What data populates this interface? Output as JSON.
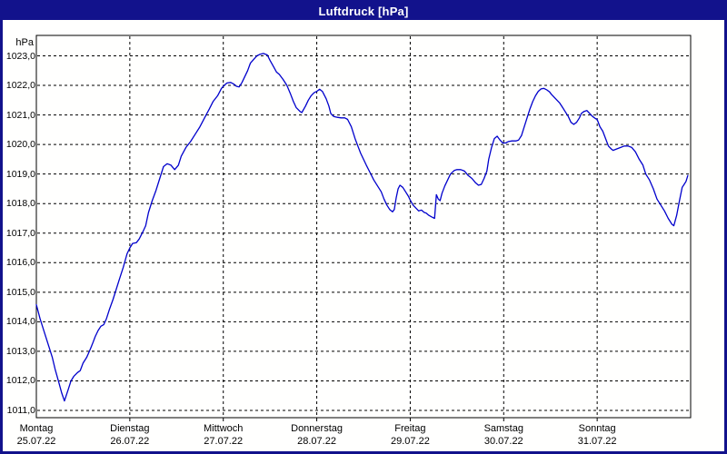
{
  "window": {
    "title": "Luftdruck [hPa]"
  },
  "colors": {
    "frame": "#12128c",
    "title_text": "#ffffff",
    "plot_line": "#0000cc",
    "grid_line": "#000000",
    "axis_text": "#000000",
    "plot_background": "#fffffe"
  },
  "chart_data": {
    "type": "line",
    "title": "Luftdruck [hPa]",
    "unit_label": "hPa",
    "legend": "none",
    "y_axis": {
      "tick_labels": [
        "1023,0",
        "1022,0",
        "1021,0",
        "1020,0",
        "1019,0",
        "1018,0",
        "1017,0",
        "1016,0",
        "1015,0",
        "1014,0",
        "1013,0",
        "1012,0",
        "1011,0"
      ],
      "tick_values": [
        1023,
        1022,
        1021,
        1020,
        1019,
        1018,
        1017,
        1016,
        1015,
        1014,
        1013,
        1012,
        1011
      ],
      "range": [
        1011,
        1023
      ],
      "grid": "dashed"
    },
    "x_axis": {
      "days": [
        {
          "name": "Montag",
          "date": "25.07.22"
        },
        {
          "name": "Dienstag",
          "date": "26.07.22"
        },
        {
          "name": "Mittwoch",
          "date": "27.07.22"
        },
        {
          "name": "Donnerstag",
          "date": "28.07.22"
        },
        {
          "name": "Freitag",
          "date": "29.07.22"
        },
        {
          "name": "Samstag",
          "date": "30.07.22"
        },
        {
          "name": "Sonntag",
          "date": "31.07.22"
        }
      ],
      "range_days": [
        0,
        7
      ],
      "grid": "dashed"
    },
    "series": [
      {
        "name": "Luftdruck",
        "color": "#0000cc",
        "points_day_hpa": [
          [
            0,
            1014.58
          ],
          [
            0.04,
            1014.1
          ],
          [
            0.08,
            1013.7
          ],
          [
            0.13,
            1013.2
          ],
          [
            0.17,
            1012.8
          ],
          [
            0.2,
            1012.4
          ],
          [
            0.24,
            1011.95
          ],
          [
            0.27,
            1011.6
          ],
          [
            0.3,
            1011.32
          ],
          [
            0.34,
            1011.7
          ],
          [
            0.37,
            1012.0
          ],
          [
            0.4,
            1012.15
          ],
          [
            0.44,
            1012.28
          ],
          [
            0.47,
            1012.35
          ],
          [
            0.5,
            1012.6
          ],
          [
            0.54,
            1012.8
          ],
          [
            0.58,
            1013.1
          ],
          [
            0.6,
            1013.25
          ],
          [
            0.63,
            1013.5
          ],
          [
            0.66,
            1013.7
          ],
          [
            0.69,
            1013.85
          ],
          [
            0.72,
            1013.9
          ],
          [
            0.75,
            1014.1
          ],
          [
            0.78,
            1014.4
          ],
          [
            0.82,
            1014.75
          ],
          [
            0.85,
            1015.05
          ],
          [
            0.89,
            1015.45
          ],
          [
            0.93,
            1015.85
          ],
          [
            0.97,
            1016.3
          ],
          [
            1,
            1016.5
          ],
          [
            1.03,
            1016.65
          ],
          [
            1.07,
            1016.68
          ],
          [
            1.1,
            1016.8
          ],
          [
            1.14,
            1017.05
          ],
          [
            1.17,
            1017.25
          ],
          [
            1.2,
            1017.7
          ],
          [
            1.24,
            1018.1
          ],
          [
            1.28,
            1018.45
          ],
          [
            1.32,
            1018.85
          ],
          [
            1.36,
            1019.25
          ],
          [
            1.4,
            1019.35
          ],
          [
            1.44,
            1019.3
          ],
          [
            1.48,
            1019.15
          ],
          [
            1.52,
            1019.3
          ],
          [
            1.55,
            1019.6
          ],
          [
            1.6,
            1019.9
          ],
          [
            1.65,
            1020.1
          ],
          [
            1.7,
            1020.35
          ],
          [
            1.75,
            1020.6
          ],
          [
            1.8,
            1020.9
          ],
          [
            1.85,
            1021.2
          ],
          [
            1.89,
            1021.45
          ],
          [
            1.94,
            1021.65
          ],
          [
            1.98,
            1021.9
          ],
          [
            2.01,
            1022.0
          ],
          [
            2.04,
            1022.08
          ],
          [
            2.08,
            1022.1
          ],
          [
            2.11,
            1022.05
          ],
          [
            2.14,
            1021.97
          ],
          [
            2.17,
            1021.95
          ],
          [
            2.2,
            1022.1
          ],
          [
            2.23,
            1022.3
          ],
          [
            2.26,
            1022.5
          ],
          [
            2.29,
            1022.75
          ],
          [
            2.33,
            1022.9
          ],
          [
            2.36,
            1023.0
          ],
          [
            2.39,
            1023.05
          ],
          [
            2.43,
            1023.08
          ],
          [
            2.47,
            1023.03
          ],
          [
            2.5,
            1022.85
          ],
          [
            2.54,
            1022.62
          ],
          [
            2.57,
            1022.45
          ],
          [
            2.6,
            1022.37
          ],
          [
            2.64,
            1022.2
          ],
          [
            2.68,
            1022.0
          ],
          [
            2.72,
            1021.7
          ],
          [
            2.75,
            1021.45
          ],
          [
            2.78,
            1021.25
          ],
          [
            2.82,
            1021.12
          ],
          [
            2.84,
            1021.08
          ],
          [
            2.88,
            1021.3
          ],
          [
            2.91,
            1021.5
          ],
          [
            2.94,
            1021.65
          ],
          [
            2.97,
            1021.75
          ],
          [
            3,
            1021.8
          ],
          [
            3.03,
            1021.87
          ],
          [
            3.06,
            1021.8
          ],
          [
            3.1,
            1021.55
          ],
          [
            3.13,
            1021.3
          ],
          [
            3.15,
            1021.05
          ],
          [
            3.18,
            1020.95
          ],
          [
            3.22,
            1020.92
          ],
          [
            3.26,
            1020.9
          ],
          [
            3.3,
            1020.9
          ],
          [
            3.33,
            1020.85
          ],
          [
            3.37,
            1020.6
          ],
          [
            3.41,
            1020.2
          ],
          [
            3.44,
            1019.95
          ],
          [
            3.47,
            1019.7
          ],
          [
            3.5,
            1019.5
          ],
          [
            3.53,
            1019.3
          ],
          [
            3.57,
            1019.05
          ],
          [
            3.61,
            1018.8
          ],
          [
            3.65,
            1018.6
          ],
          [
            3.69,
            1018.4
          ],
          [
            3.72,
            1018.15
          ],
          [
            3.75,
            1017.95
          ],
          [
            3.78,
            1017.8
          ],
          [
            3.81,
            1017.72
          ],
          [
            3.83,
            1017.8
          ],
          [
            3.85,
            1018.2
          ],
          [
            3.87,
            1018.5
          ],
          [
            3.89,
            1018.62
          ],
          [
            3.92,
            1018.55
          ],
          [
            3.95,
            1018.4
          ],
          [
            3.98,
            1018.25
          ],
          [
            4,
            1018.12
          ],
          [
            4.03,
            1017.95
          ],
          [
            4.06,
            1017.85
          ],
          [
            4.09,
            1017.75
          ],
          [
            4.12,
            1017.78
          ],
          [
            4.15,
            1017.7
          ],
          [
            4.17,
            1017.68
          ],
          [
            4.2,
            1017.6
          ],
          [
            4.23,
            1017.55
          ],
          [
            4.26,
            1017.5
          ],
          [
            4.28,
            1018.3
          ],
          [
            4.3,
            1018.15
          ],
          [
            4.32,
            1018.1
          ],
          [
            4.34,
            1018.35
          ],
          [
            4.37,
            1018.6
          ],
          [
            4.4,
            1018.8
          ],
          [
            4.43,
            1019.0
          ],
          [
            4.47,
            1019.12
          ],
          [
            4.5,
            1019.15
          ],
          [
            4.54,
            1019.15
          ],
          [
            4.58,
            1019.1
          ],
          [
            4.62,
            1018.95
          ],
          [
            4.66,
            1018.85
          ],
          [
            4.7,
            1018.7
          ],
          [
            4.73,
            1018.62
          ],
          [
            4.76,
            1018.65
          ],
          [
            4.79,
            1018.85
          ],
          [
            4.82,
            1019.1
          ],
          [
            4.84,
            1019.5
          ],
          [
            4.87,
            1019.9
          ],
          [
            4.9,
            1020.2
          ],
          [
            4.93,
            1020.28
          ],
          [
            4.96,
            1020.15
          ],
          [
            4.99,
            1020.05
          ],
          [
            5.02,
            1020.05
          ],
          [
            5.05,
            1020.1
          ],
          [
            5.09,
            1020.12
          ],
          [
            5.13,
            1020.12
          ],
          [
            5.16,
            1020.15
          ],
          [
            5.19,
            1020.3
          ],
          [
            5.22,
            1020.6
          ],
          [
            5.25,
            1020.9
          ],
          [
            5.28,
            1021.2
          ],
          [
            5.31,
            1021.45
          ],
          [
            5.34,
            1021.65
          ],
          [
            5.37,
            1021.8
          ],
          [
            5.4,
            1021.88
          ],
          [
            5.43,
            1021.9
          ],
          [
            5.46,
            1021.85
          ],
          [
            5.49,
            1021.78
          ],
          [
            5.51,
            1021.7
          ],
          [
            5.54,
            1021.6
          ],
          [
            5.57,
            1021.5
          ],
          [
            5.6,
            1021.4
          ],
          [
            5.63,
            1021.25
          ],
          [
            5.66,
            1021.1
          ],
          [
            5.69,
            1020.95
          ],
          [
            5.72,
            1020.75
          ],
          [
            5.75,
            1020.68
          ],
          [
            5.78,
            1020.75
          ],
          [
            5.81,
            1020.9
          ],
          [
            5.83,
            1021.05
          ],
          [
            5.86,
            1021.12
          ],
          [
            5.89,
            1021.15
          ],
          [
            5.92,
            1021.05
          ],
          [
            5.95,
            1020.95
          ],
          [
            5.98,
            1020.88
          ],
          [
            6,
            1020.85
          ],
          [
            6.03,
            1020.6
          ],
          [
            6.06,
            1020.45
          ],
          [
            6.09,
            1020.2
          ],
          [
            6.12,
            1019.95
          ],
          [
            6.15,
            1019.85
          ],
          [
            6.17,
            1019.8
          ],
          [
            6.21,
            1019.85
          ],
          [
            6.25,
            1019.9
          ],
          [
            6.29,
            1019.95
          ],
          [
            6.33,
            1019.95
          ],
          [
            6.37,
            1019.9
          ],
          [
            6.41,
            1019.75
          ],
          [
            6.45,
            1019.5
          ],
          [
            6.49,
            1019.3
          ],
          [
            6.52,
            1019.0
          ],
          [
            6.56,
            1018.8
          ],
          [
            6.6,
            1018.5
          ],
          [
            6.64,
            1018.15
          ],
          [
            6.68,
            1017.95
          ],
          [
            6.72,
            1017.75
          ],
          [
            6.76,
            1017.5
          ],
          [
            6.8,
            1017.3
          ],
          [
            6.82,
            1017.25
          ],
          [
            6.85,
            1017.6
          ],
          [
            6.88,
            1018.1
          ],
          [
            6.91,
            1018.55
          ],
          [
            6.93,
            1018.65
          ],
          [
            6.95,
            1018.75
          ],
          [
            6.97,
            1018.95
          ]
        ]
      }
    ]
  }
}
